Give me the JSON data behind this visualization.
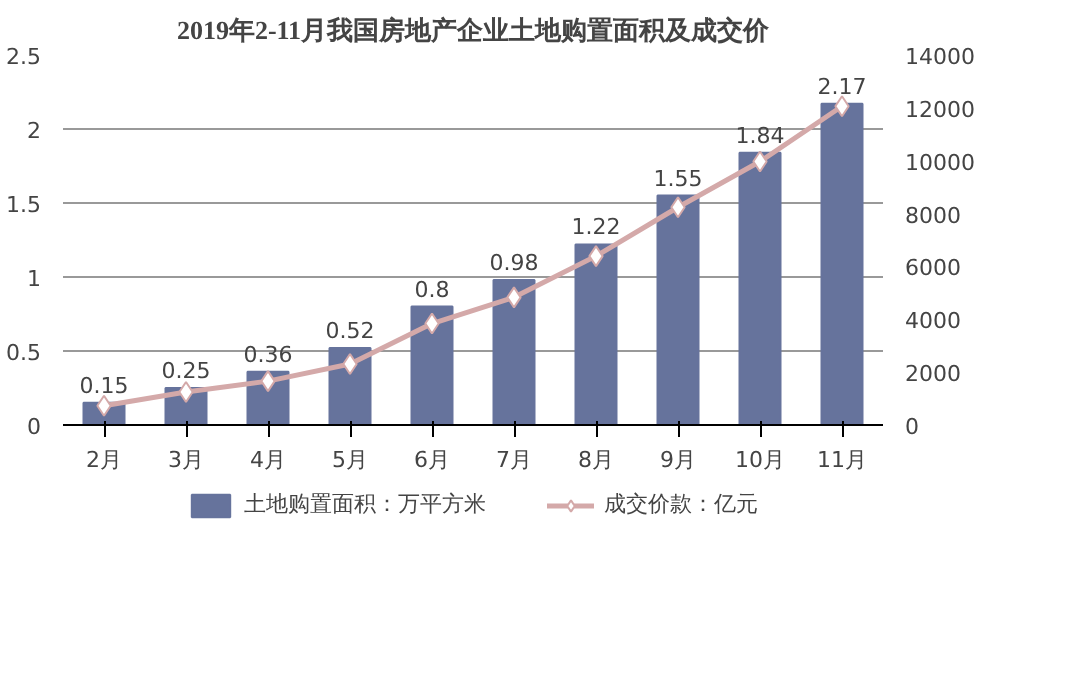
{
  "chart_data": {
    "type": "bar",
    "title": "2019年2-11月我国房地产企业土地购置面积及成交价",
    "categories": [
      "2月",
      "3月",
      "4月",
      "5月",
      "6月",
      "7月",
      "8月",
      "9月",
      "10月",
      "11月"
    ],
    "series": [
      {
        "name": "土地购置面积：万平方米",
        "color": "#66739c",
        "values": [
          0.15,
          0.25,
          0.36,
          0.52,
          0.8,
          0.98,
          1.22,
          1.55,
          1.84,
          2.17
        ],
        "data_labels": true
      },
      {
        "name": "成交价款：亿元",
        "type": "line",
        "axis": "y2",
        "color": "#d4a9a9",
        "marker": "diamond",
        "values": [
          730,
          1250,
          1660,
          2310,
          3840,
          4830,
          6390,
          8240,
          9970,
          12060
        ]
      }
    ],
    "ylim": [
      0,
      2.5
    ],
    "yticks": [
      0,
      0.5,
      1,
      1.5,
      2,
      2.5
    ],
    "y2lim": [
      0,
      14000
    ],
    "y2ticks": [
      0,
      2000,
      4000,
      6000,
      8000,
      10000,
      12000,
      14000
    ],
    "grid": "y",
    "legend": "bottom"
  }
}
